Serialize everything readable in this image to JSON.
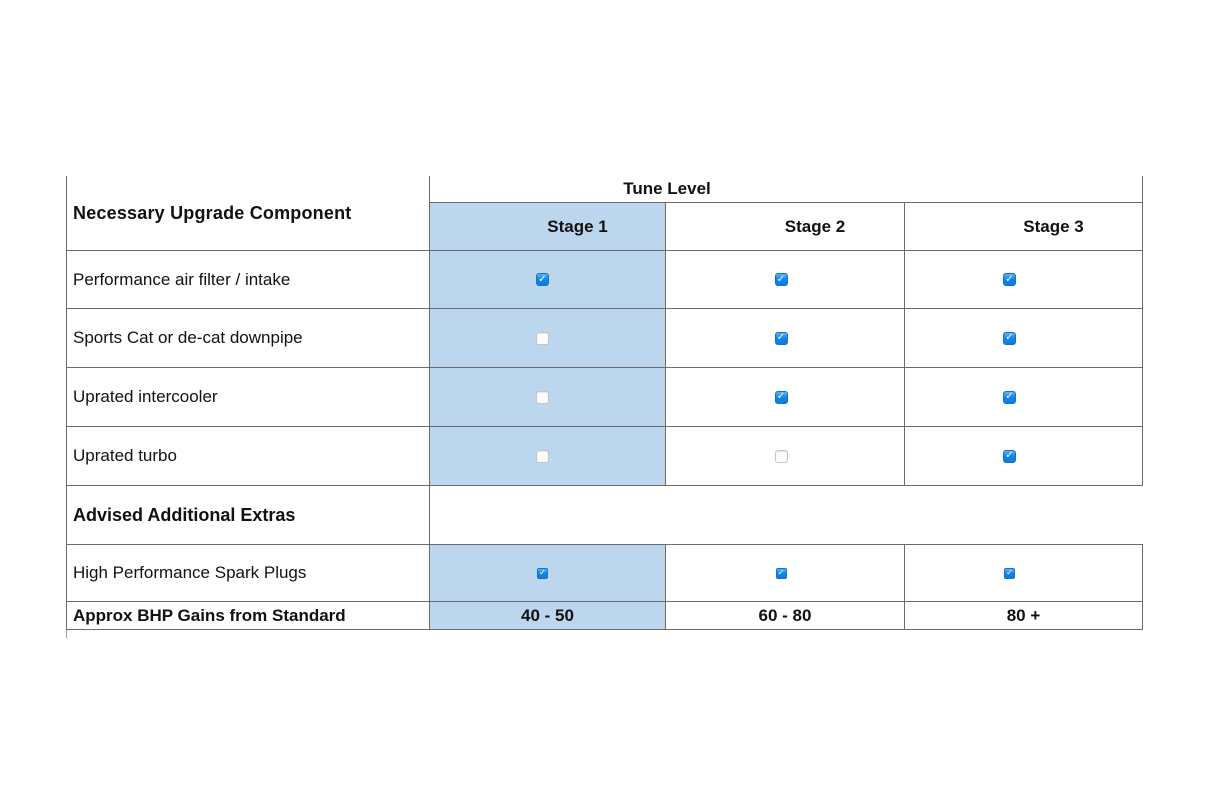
{
  "table": {
    "corner_header": "Necessary Upgrade Component",
    "group_header": "Tune Level",
    "stage_headers": [
      "Stage 1",
      "Stage 2",
      "Stage 3"
    ],
    "component_rows": [
      {
        "label": "Performance air filter / intake",
        "checks": [
          "cb checked",
          "cb checked",
          "cb checked"
        ]
      },
      {
        "label": "Sports Cat or de-cat downpipe",
        "checks": [
          "cb unchecked",
          "cb checked",
          "cb checked"
        ]
      },
      {
        "label": "Uprated intercooler",
        "checks": [
          "cb unchecked",
          "cb checked",
          "cb checked"
        ]
      },
      {
        "label": "Uprated turbo",
        "checks": [
          "cb unchecked",
          "cb unchecked",
          "cb checked"
        ]
      }
    ],
    "section_header": "Advised Additional Extras",
    "extras_rows": [
      {
        "label": "High Performance Spark Plugs",
        "checks": [
          "cb checked",
          "cb checked",
          "cb checked"
        ]
      }
    ],
    "footer_row": {
      "label": "Approx BHP Gains from Standard",
      "values": [
        "40 - 50",
        "60 - 80",
        "80 +"
      ]
    }
  },
  "colors": {
    "stage1_highlight": "#BCD6EE",
    "checkbox_checked_blue": "#1486EA",
    "grid_line": "#6B6B6B",
    "text": "#111111"
  }
}
